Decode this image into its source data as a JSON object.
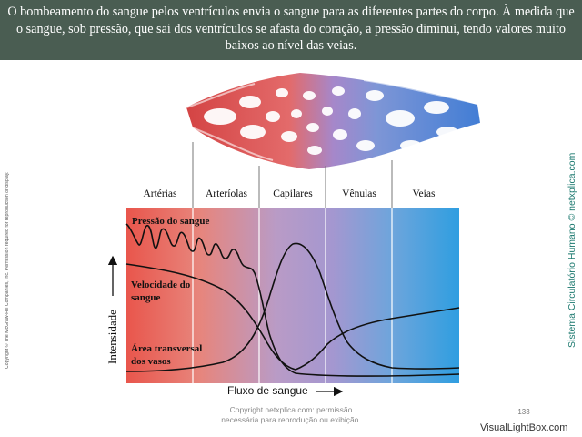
{
  "header": {
    "text": "O bombeamento do sangue pelos ventrículos envia o sangue para as diferentes partes do corpo. À medida que o sangue, sob pressão, que sai dos ventrículos se afasta do coração, a pressão diminui, tendo valores muito baixos ao nível das veias."
  },
  "diagram": {
    "segments": [
      "Artérias",
      "Arteríolas",
      "Capilares",
      "Vênulas",
      "Veias"
    ],
    "curves": {
      "pressure": "Pressão do sangue",
      "velocity_line1": "Velocidade do",
      "velocity_line2": "sangue",
      "area_line1": "Área transversal",
      "area_line2": "dos vasos"
    },
    "y_axis_label": "Intensidade",
    "x_axis_label": "Fluxo de sangue",
    "colors": {
      "arterial": "#e8544a",
      "capillary": "#a48cc8",
      "venous": "#3aa2df"
    }
  },
  "left_copyright": "Copyright © The McGraw-Hill Companies, Inc. Permission required for reproduction or display.",
  "right_credit": "Sistema Circulatório Humano © netxplica.com",
  "footer_note_line1": "Copyright netxplica.com: permissão",
  "footer_note_line2": "necessária para reprodução ou exibição.",
  "slide_number": "133",
  "watermark": "VisualLightBox.com"
}
